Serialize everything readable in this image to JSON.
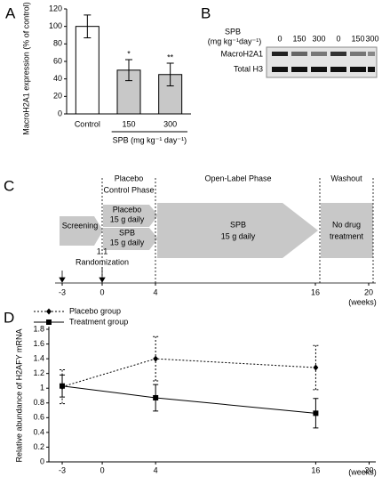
{
  "panels": [
    "A",
    "B",
    "C",
    "D"
  ],
  "chart_data": [
    {
      "type": "bar",
      "ylabel": "MacroH2A1 expression (% of control)",
      "categories": [
        "Control",
        "150",
        "300"
      ],
      "values": [
        100,
        50,
        45
      ],
      "errors": [
        13,
        12,
        13
      ],
      "colors": [
        "#ffffff",
        "#c8c8c8",
        "#c8c8c8"
      ],
      "value_annotations": [
        null,
        "*",
        "**"
      ],
      "xlabel": "SPB (mg kg⁻¹ day⁻¹)",
      "ylim": [
        0,
        120
      ],
      "yticks": [
        0,
        20,
        40,
        60,
        80,
        100,
        120
      ]
    },
    {
      "type": "line",
      "ylabel": "Relative abundance of H2AFY mRNA",
      "x": [
        -3,
        4,
        16
      ],
      "series": [
        {
          "name": "Placebo group",
          "color": "#000000",
          "style": "dotted",
          "marker": "diamond",
          "values": [
            1.02,
            1.4,
            1.28
          ],
          "errors": [
            0.23,
            0.3,
            0.3
          ]
        },
        {
          "name": "Treatment group",
          "color": "#000000",
          "style": "solid",
          "marker": "square",
          "values": [
            1.03,
            0.87,
            0.66
          ],
          "errors": [
            0.15,
            0.18,
            0.2
          ]
        }
      ],
      "xlim": [
        -4,
        20.5
      ],
      "xticks": [
        -3,
        0,
        4,
        16,
        20
      ],
      "xunit": "(weeks)",
      "ylim": [
        0,
        1.8
      ],
      "yticks": [
        0,
        0.2,
        0.4,
        0.6,
        0.8,
        1,
        1.2,
        1.4,
        1.6,
        1.8
      ]
    }
  ],
  "blot": {
    "header": [
      "SPB",
      "(mg kg⁻¹day⁻¹)"
    ],
    "lanes": [
      "0",
      "150",
      "300",
      "0",
      "150",
      "300"
    ],
    "rows": [
      "MacroH2A1",
      "Total H3"
    ]
  },
  "timeline": {
    "phases": [
      [
        "Placebo",
        "Control Phase"
      ],
      [
        "Open-Label Phase"
      ],
      [
        "Washout"
      ]
    ],
    "screening": "Screening",
    "arms": [
      [
        "Placebo",
        "15 g daily"
      ],
      [
        "SPB",
        "15 g daily"
      ]
    ],
    "open_label": [
      "SPB",
      "15 g daily"
    ],
    "washout": [
      "No drug",
      "treatment"
    ],
    "randomization": [
      "1:1",
      "Randomization"
    ],
    "ticks": [
      -3,
      0,
      4,
      16,
      20
    ],
    "unit": "(weeks)"
  }
}
